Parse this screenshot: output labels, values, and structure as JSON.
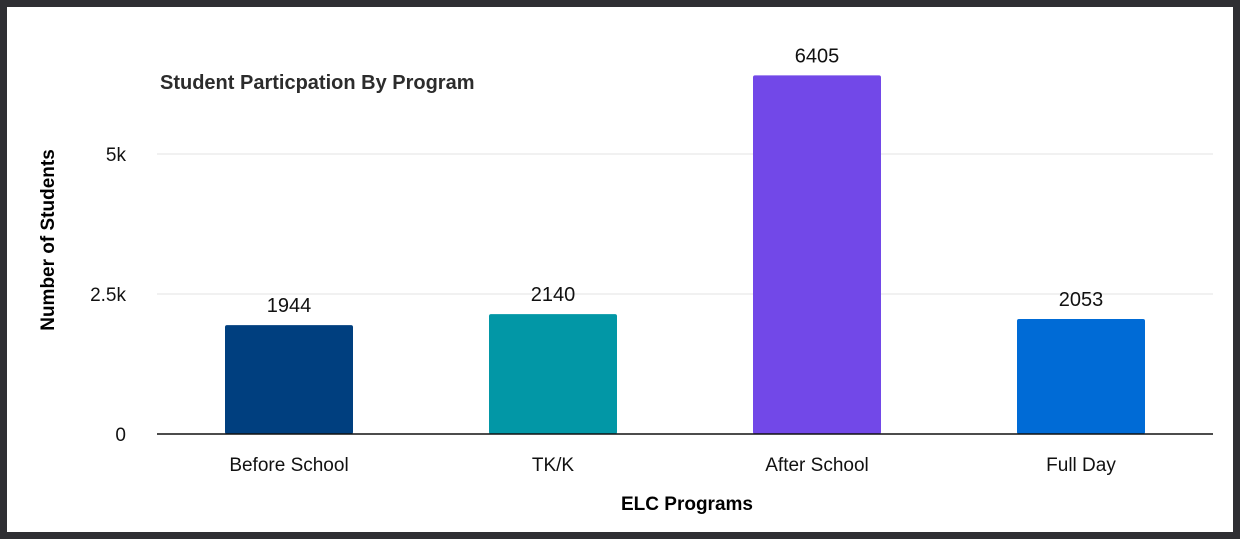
{
  "chart_data": {
    "type": "bar",
    "title": "Student Particpation By Program",
    "xlabel": "ELC Programs",
    "ylabel": "Number of Students",
    "categories": [
      "Before School",
      "TK/K",
      "After School",
      "Full Day"
    ],
    "values": [
      1944,
      2140,
      6405,
      2053
    ],
    "data_labels": [
      "1944",
      "2140",
      "6405",
      "2053"
    ],
    "bar_colors": [
      "#003f7f",
      "#0297a6",
      "#7248e8",
      "#006bd6"
    ],
    "ylim": [
      0,
      7000
    ],
    "yticks": [
      0,
      2500,
      5000
    ],
    "ytick_labels": [
      "0",
      "2.5k",
      "5k"
    ],
    "grid": true,
    "legend": "none"
  }
}
